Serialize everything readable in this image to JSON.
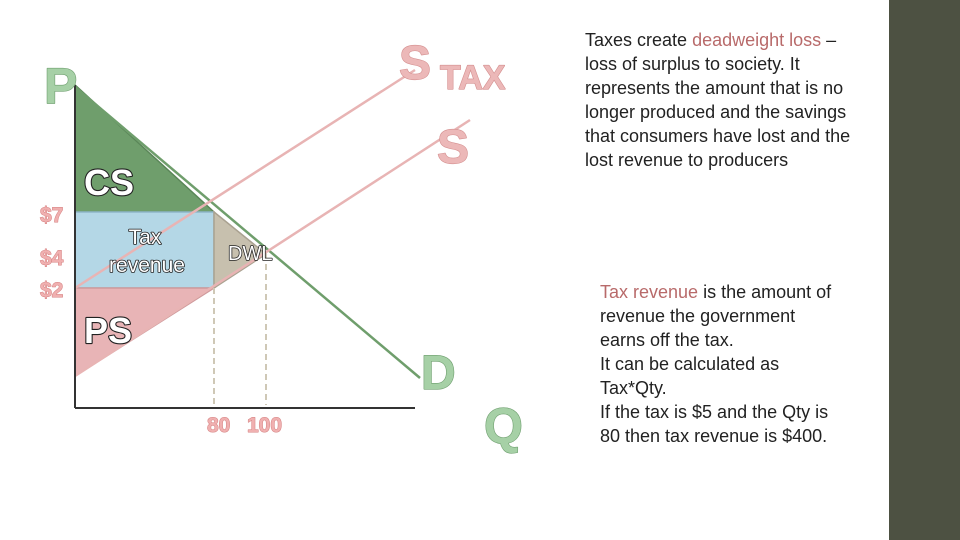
{
  "diagram": {
    "labels": {
      "price_axis": "P",
      "quantity_axis": "Q",
      "supply_tax_s": "S",
      "supply_tax_sub": "TAX",
      "supply": "S",
      "demand": "D",
      "consumer_surplus": "CS",
      "producer_surplus": "PS",
      "tax_revenue_line1": "Tax",
      "tax_revenue_line2": "revenue",
      "deadweight_loss": "DWL"
    },
    "price_ticks": [
      "$7",
      "$4",
      "$2"
    ],
    "quantity_ticks": [
      "80",
      "100"
    ],
    "colors": {
      "consumer_surplus": "#6f9e6c",
      "tax_revenue": "#b4d7e6",
      "producer_surplus": "#e8b4b6",
      "deadweight_loss": "#c7c0ae",
      "supply_curve": "#e8b4b4",
      "demand_curve": "#6f9e6c",
      "highlight_text": "#b86a6a",
      "sidebar": "#4d5142"
    }
  },
  "deadweight_text": {
    "prefix": "Taxes create ",
    "highlight": "deadweight loss",
    "rest": " – loss of surplus to society. It represents the amount that is no longer produced and the savings that consumers have lost and the lost revenue to producers"
  },
  "tax_revenue_text": {
    "highlight": "Tax revenue",
    "rest": " is the amount of revenue the government earns off the tax.",
    "line2": "It can be calculated as Tax*Qty.",
    "line3": "If the tax is $5 and the Qty is 80 then tax revenue is $400."
  }
}
